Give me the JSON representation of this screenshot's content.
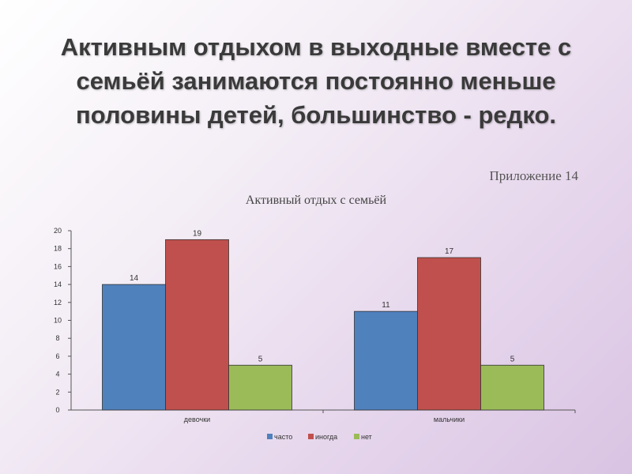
{
  "slide": {
    "title": "Активным отдыхом в выходные вместе с семьёй занимаются постоянно меньше половины детей, большинство - редко.",
    "appendix": "Приложение 14"
  },
  "chart_data": {
    "type": "bar",
    "title": "Активный отдых с семьёй",
    "categories": [
      "девочки",
      "мальчики"
    ],
    "series": [
      {
        "name": "часто",
        "values": [
          14,
          11
        ],
        "color": "#4f81bd"
      },
      {
        "name": "иногда",
        "values": [
          19,
          17
        ],
        "color": "#c0504d"
      },
      {
        "name": "нет",
        "values": [
          5,
          5
        ],
        "color": "#9bbb59"
      }
    ],
    "ylim": [
      0,
      20
    ],
    "yticks": [
      0,
      2,
      4,
      6,
      8,
      10,
      12,
      14,
      16,
      18,
      20
    ],
    "grid": false,
    "legend": "bottom",
    "data_labels": true
  }
}
